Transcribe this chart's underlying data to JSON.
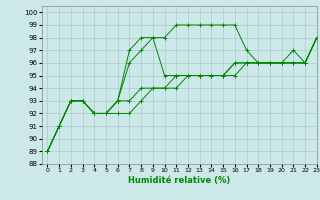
{
  "xlabel": "Humidité relative (%)",
  "xlim": [
    -0.5,
    23
  ],
  "ylim": [
    88,
    100.5
  ],
  "yticks": [
    88,
    89,
    90,
    91,
    92,
    93,
    94,
    95,
    96,
    97,
    98,
    99,
    100
  ],
  "xticks": [
    0,
    1,
    2,
    3,
    4,
    5,
    6,
    7,
    8,
    9,
    10,
    11,
    12,
    13,
    14,
    15,
    16,
    17,
    18,
    19,
    20,
    21,
    22,
    23
  ],
  "bg_color": "#cce8e8",
  "grid_color": "#aacccc",
  "line_color": "#008800",
  "lines": [
    [
      89,
      91,
      93,
      93,
      92,
      92,
      93,
      97,
      98,
      98,
      98,
      99,
      99,
      99,
      99,
      99,
      99,
      97,
      96,
      96,
      96,
      97,
      96,
      98
    ],
    [
      89,
      91,
      93,
      93,
      92,
      92,
      93,
      96,
      97,
      98,
      95,
      95,
      95,
      95,
      95,
      95,
      96,
      96,
      96,
      96,
      96,
      96,
      96,
      98
    ],
    [
      89,
      91,
      93,
      93,
      92,
      92,
      93,
      93,
      94,
      94,
      94,
      95,
      95,
      95,
      95,
      95,
      96,
      96,
      96,
      96,
      96,
      96,
      96,
      98
    ],
    [
      89,
      91,
      93,
      93,
      92,
      92,
      92,
      92,
      93,
      94,
      94,
      94,
      95,
      95,
      95,
      95,
      95,
      96,
      96,
      96,
      96,
      96,
      96,
      98
    ]
  ]
}
